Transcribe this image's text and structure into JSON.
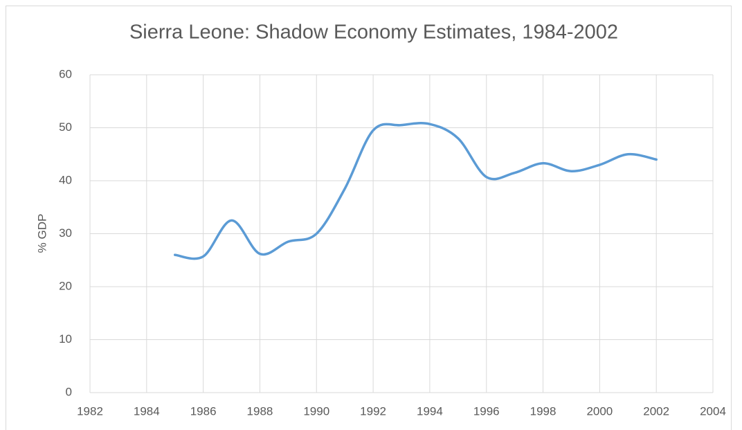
{
  "chart_data": {
    "type": "line",
    "title": "Sierra Leone: Shadow Economy Estimates, 1984-2002",
    "y_label": "% GDP",
    "x": [
      1985,
      1986,
      1987,
      1988,
      1989,
      1990,
      1991,
      1992,
      1993,
      1994,
      1995,
      1996,
      1997,
      1998,
      1999,
      2000,
      2001,
      2002
    ],
    "series": [
      {
        "name": "Shadow economy",
        "color": "#5b9bd5",
        "values": [
          26,
          25.7,
          32.5,
          26.2,
          28.5,
          30,
          38.5,
          49.5,
          50.5,
          50.7,
          48,
          40.7,
          41.5,
          43.3,
          41.8,
          43,
          45,
          44
        ]
      }
    ],
    "xlim": [
      1982,
      2004
    ],
    "xticks": [
      1982,
      1984,
      1986,
      1988,
      1990,
      1992,
      1994,
      1996,
      1998,
      2000,
      2002,
      2004
    ],
    "ylim": [
      0,
      60
    ],
    "yticks": [
      0,
      10,
      20,
      30,
      40,
      50,
      60
    ],
    "grid": true
  }
}
